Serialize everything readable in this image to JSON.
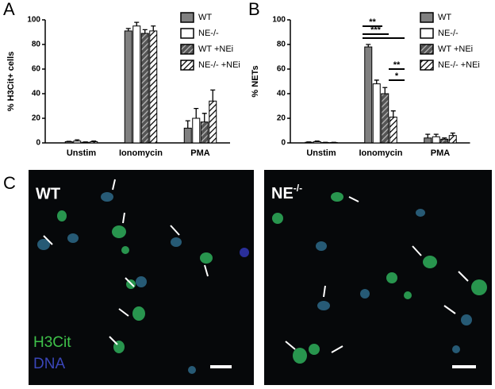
{
  "panel_labels": [
    "A",
    "B",
    "C"
  ],
  "chart_data": [
    {
      "type": "bar",
      "y_label": "% H3Cit+ cells",
      "categories": [
        "Unstim",
        "Ionomycin",
        "PMA"
      ],
      "series": [
        {
          "name": "WT",
          "color": "#808080",
          "hatch": false,
          "values": [
            1,
            91,
            12
          ],
          "errors": [
            0.3,
            2,
            6
          ]
        },
        {
          "name": "NE-/-",
          "color": "#ffffff",
          "hatch": false,
          "values": [
            1.5,
            95,
            20
          ],
          "errors": [
            1,
            3,
            8
          ]
        },
        {
          "name": "WT +NEi",
          "color": "#555555",
          "hatch": true,
          "values": [
            0.5,
            89,
            17
          ],
          "errors": [
            0.3,
            3,
            7
          ]
        },
        {
          "name": "NE-/- +NEi",
          "color": "#ffffff",
          "hatch": true,
          "values": [
            1,
            91,
            34
          ],
          "errors": [
            0.5,
            4,
            9
          ]
        }
      ],
      "ylim": [
        0,
        100
      ],
      "yticks": [
        0,
        20,
        40,
        60,
        80,
        100
      ],
      "legend": "upper right"
    },
    {
      "type": "bar",
      "y_label": "% NETs",
      "categories": [
        "Unstim",
        "Ionomycin",
        "PMA"
      ],
      "series": [
        {
          "name": "WT",
          "color": "#808080",
          "hatch": false,
          "values": [
            0.5,
            78,
            4
          ],
          "errors": [
            0.3,
            2,
            3
          ]
        },
        {
          "name": "NE-/-",
          "color": "#ffffff",
          "hatch": false,
          "values": [
            1,
            48,
            5
          ],
          "errors": [
            0.5,
            3,
            2
          ]
        },
        {
          "name": "WT +NEi",
          "color": "#555555",
          "hatch": true,
          "values": [
            0.3,
            40,
            3
          ],
          "errors": [
            0.2,
            5,
            1
          ]
        },
        {
          "name": "NE-/- +NEi",
          "color": "#ffffff",
          "hatch": true,
          "values": [
            0.3,
            21,
            6
          ],
          "errors": [
            0.2,
            5,
            2
          ]
        }
      ],
      "ylim": [
        0,
        100
      ],
      "yticks": [
        0,
        20,
        40,
        60,
        80,
        100
      ],
      "legend": "upper right",
      "annotations": [
        "**",
        "***",
        "**",
        "*"
      ]
    }
  ],
  "images": [
    {
      "label": "WT"
    },
    {
      "label": "NE",
      "superscript": "-/-"
    }
  ],
  "stain_legend": [
    {
      "text": "H3Cit",
      "color": "#3fc24a"
    },
    {
      "text": "DNA",
      "color": "#3a46b8"
    }
  ]
}
